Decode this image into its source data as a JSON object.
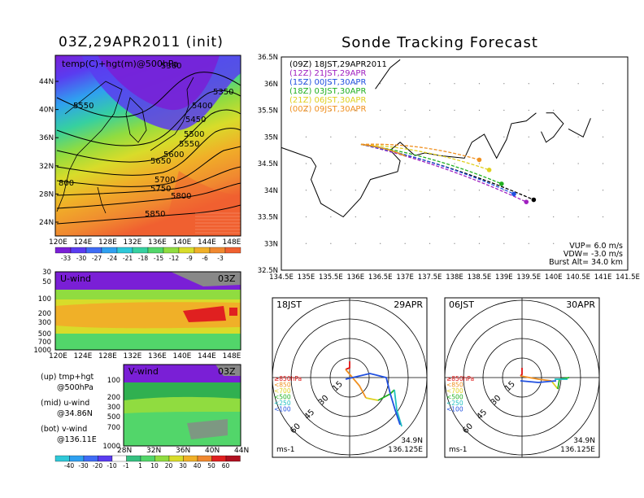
{
  "left_title": "03Z,29APR2011 (init)",
  "right_title": "Sonde Tracking Forecast",
  "top_map": {
    "label": "temp(C)+hgt(m)@500hPa",
    "lat_ticks": [
      "44N",
      "40N",
      "36N",
      "32N",
      "28N",
      "24N"
    ],
    "lon_ticks": [
      "120E",
      "124E",
      "128E",
      "132E",
      "136E",
      "140E",
      "144E",
      "148E"
    ],
    "contours": [
      "5350",
      "5400",
      "5450",
      "5500",
      "5550",
      "5600",
      "5650",
      "5700",
      "5750",
      "5800",
      "5850",
      "5550",
      "800",
      "5360"
    ],
    "colorbar": [
      "-33",
      "-30",
      "-27",
      "-24",
      "-21",
      "-18",
      "-15",
      "-12",
      "-9",
      "-6",
      "-3"
    ],
    "colors": [
      "#7a1fd6",
      "#5a3cf0",
      "#3f6cf5",
      "#2fa0f0",
      "#2ec8d8",
      "#36d0a0",
      "#52d66a",
      "#90dc40",
      "#d8dc2a",
      "#f0b028",
      "#f08830",
      "#f06030"
    ]
  },
  "u_wind": {
    "label": "U-wind",
    "time": "03Z",
    "levels": [
      "30",
      "50",
      "100",
      "200",
      "300",
      "500",
      "700",
      "1000"
    ],
    "lon_ticks": [
      "120E",
      "124E",
      "128E",
      "132E",
      "136E",
      "140E",
      "144E",
      "148E"
    ]
  },
  "v_wind": {
    "label": "V-wind",
    "time": "03Z",
    "levels": [
      "100",
      "200",
      "300",
      "500",
      "700",
      "1000"
    ],
    "lat_ticks": [
      "28N",
      "32N",
      "36N",
      "40N",
      "44N"
    ],
    "colorbar": [
      "-40",
      "-30",
      "-20",
      "-10",
      "-1",
      "1",
      "10",
      "20",
      "30",
      "40",
      "50",
      "60"
    ]
  },
  "legend_notes": [
    {
      "a": "(up) tmp+hgt",
      "b": "@500hPa"
    },
    {
      "a": "(mid) u-wind",
      "b": "@34.86N"
    },
    {
      "a": "(bot) v-wind",
      "b": "@136.11E"
    }
  ],
  "track_map": {
    "lat_ticks": [
      "36.5N",
      "36N",
      "35.5N",
      "35N",
      "34.5N",
      "34N",
      "33.5N",
      "33N",
      "32.5N"
    ],
    "lon_ticks": [
      "134.5E",
      "135E",
      "135.5E",
      "136E",
      "136.5E",
      "137E",
      "137.5E",
      "138E",
      "138.5E",
      "139E",
      "139.5E",
      "140E",
      "140.5E",
      "141E",
      "141.5E"
    ],
    "legend": [
      {
        "text": "(09Z)  18JST,29APR2011",
        "color": "#000000"
      },
      {
        "text": "(12Z)  21JST,29APR",
        "color": "#a020c0"
      },
      {
        "text": "(15Z)  00JST,30APR",
        "color": "#2050e0"
      },
      {
        "text": "(18Z)  03JST,30APR",
        "color": "#20b020"
      },
      {
        "text": "(21Z)  06JST,30APR",
        "color": "#e0d020"
      },
      {
        "text": "(00Z)  09JST,30APR",
        "color": "#f09020"
      }
    ],
    "params": [
      "VUP=  6.0  m/s",
      "VDW= -3.0  m/s",
      "Burst Alt=  34.0  km"
    ]
  },
  "chart_data": {
    "type": "line",
    "title": "Sonde Tracking Forecast",
    "xlim": [
      134.5,
      141.5
    ],
    "ylim": [
      32.5,
      36.5
    ],
    "launch": [
      136.11,
      34.86
    ],
    "series": [
      {
        "name": "(09Z)  18JST,29APR2011",
        "endpoint": [
          139.6,
          33.82
        ]
      },
      {
        "name": "(12Z)  21JST,29APR",
        "endpoint": [
          139.45,
          33.78
        ]
      },
      {
        "name": "(15Z)  00JST,30APR",
        "endpoint": [
          139.2,
          33.93
        ]
      },
      {
        "name": "(18Z)  03JST,30APR",
        "endpoint": [
          138.95,
          34.12
        ]
      },
      {
        "name": "(21Z)  06JST,30APR",
        "endpoint": [
          138.7,
          34.38
        ]
      },
      {
        "name": "(00Z)  09JST,30APR",
        "endpoint": [
          138.5,
          34.57
        ]
      }
    ]
  },
  "hodo1": {
    "left": "18JST",
    "right": "29APR",
    "coords1": "34.9N",
    "coords2": "136.125E",
    "units": "ms-1",
    "rings": [
      "15",
      "30",
      "45",
      "60"
    ]
  },
  "hodo2": {
    "left": "06JST",
    "right": "30APR",
    "coords1": "34.9N",
    "coords2": "136.125E",
    "units": "ms-1",
    "rings": [
      "15",
      "30",
      "45",
      "60"
    ]
  },
  "hodo_legend": [
    {
      "text": "≥850hPa",
      "color": "#e01010"
    },
    {
      "text": "<850",
      "color": "#f09020"
    },
    {
      "text": "<700",
      "color": "#e0d020"
    },
    {
      "text": "<500",
      "color": "#20b020"
    },
    {
      "text": "<250",
      "color": "#20c0c0"
    },
    {
      "text": "<100",
      "color": "#2050e0"
    }
  ]
}
